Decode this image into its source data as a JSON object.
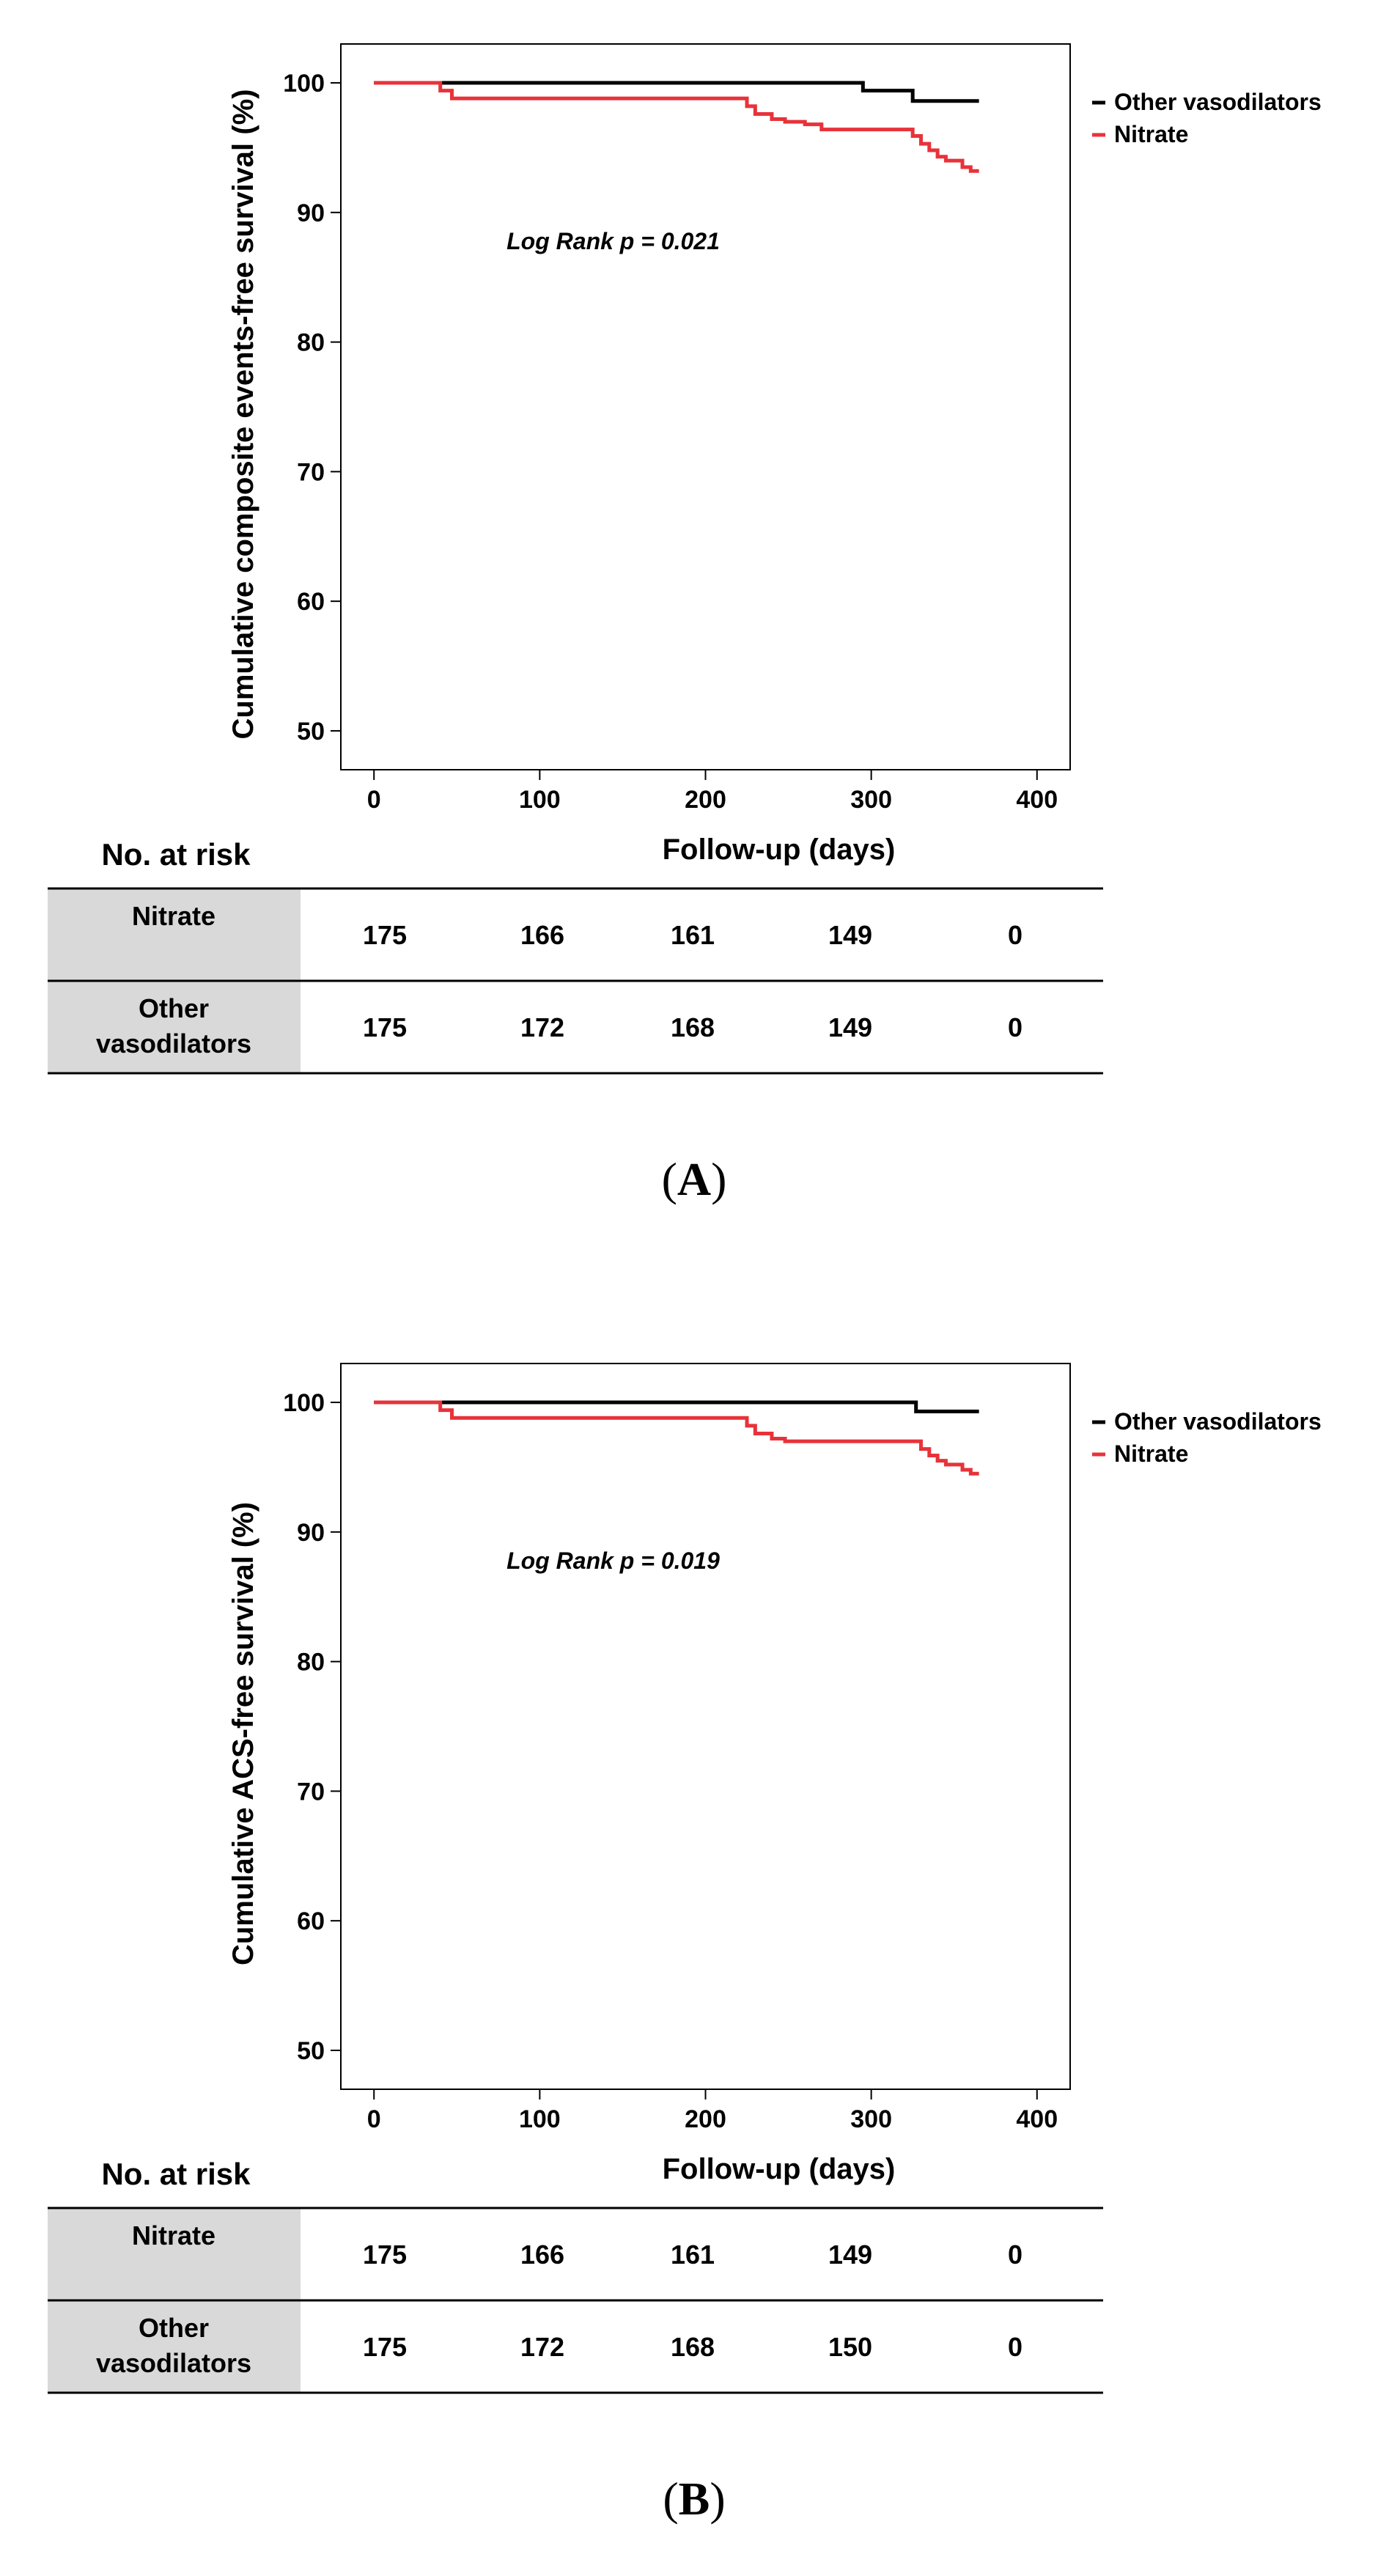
{
  "panels": [
    {
      "label": "A",
      "chart_data": {
        "type": "line",
        "step": true,
        "ylabel": "Cumulative composite events-free survival (%)",
        "xlabel": "Follow-up (days)",
        "xlim": [
          -20,
          420
        ],
        "ylim": [
          47,
          103
        ],
        "xticks": [
          0,
          100,
          200,
          300,
          400
        ],
        "yticks": [
          50,
          60,
          70,
          80,
          90,
          100
        ],
        "legend_position": "right",
        "annotation": "Log Rank p = 0.021",
        "series": [
          {
            "name": "Other vasodilators",
            "color": "#000000",
            "x": [
              0,
              295,
              300,
              325,
              365
            ],
            "y": [
              100,
              99.4,
              99.4,
              98.6,
              98.6
            ]
          },
          {
            "name": "Nitrate",
            "color": "#e8323a",
            "x": [
              0,
              40,
              42,
              47,
              225,
              230,
              240,
              248,
              260,
              270,
              325,
              330,
              335,
              340,
              345,
              355,
              360,
              365
            ],
            "y": [
              100,
              99.4,
              99.4,
              98.8,
              98.2,
              97.6,
              97.2,
              97.0,
              96.8,
              96.4,
              95.9,
              95.3,
              94.8,
              94.3,
              94.0,
              93.5,
              93.2,
              93.2
            ]
          }
        ]
      },
      "risk_table": {
        "title": "No. at risk",
        "rows": [
          {
            "group": "Nitrate",
            "values": [
              "175",
              "166",
              "161",
              "149",
              "0"
            ]
          },
          {
            "group": "Other vasodilators",
            "values": [
              "175",
              "172",
              "168",
              "149",
              "0"
            ]
          }
        ]
      }
    },
    {
      "label": "B",
      "chart_data": {
        "type": "line",
        "step": true,
        "ylabel": "Cumulative ACS-free survival (%)",
        "xlabel": "Follow-up (days)",
        "xlim": [
          -20,
          420
        ],
        "ylim": [
          47,
          103
        ],
        "xticks": [
          0,
          100,
          200,
          300,
          400
        ],
        "yticks": [
          50,
          60,
          70,
          80,
          90,
          100
        ],
        "legend_position": "right",
        "annotation": "Log Rank p = 0.019",
        "series": [
          {
            "name": "Other vasodilators",
            "color": "#000000",
            "x": [
              0,
              327,
              365
            ],
            "y": [
              100,
              99.3,
              99.3
            ]
          },
          {
            "name": "Nitrate",
            "color": "#e8323a",
            "x": [
              0,
              40,
              42,
              47,
              225,
              230,
              240,
              248,
              330,
              335,
              340,
              345,
              355,
              360,
              365
            ],
            "y": [
              100,
              99.4,
              99.4,
              98.8,
              98.2,
              97.6,
              97.2,
              97.0,
              96.4,
              95.9,
              95.5,
              95.2,
              94.8,
              94.5,
              94.5
            ]
          }
        ]
      },
      "risk_table": {
        "title": "No. at risk",
        "rows": [
          {
            "group": "Nitrate",
            "values": [
              "175",
              "166",
              "161",
              "149",
              "0"
            ]
          },
          {
            "group": "Other vasodilators",
            "values": [
              "175",
              "172",
              "168",
              "150",
              "0"
            ]
          }
        ]
      }
    }
  ]
}
